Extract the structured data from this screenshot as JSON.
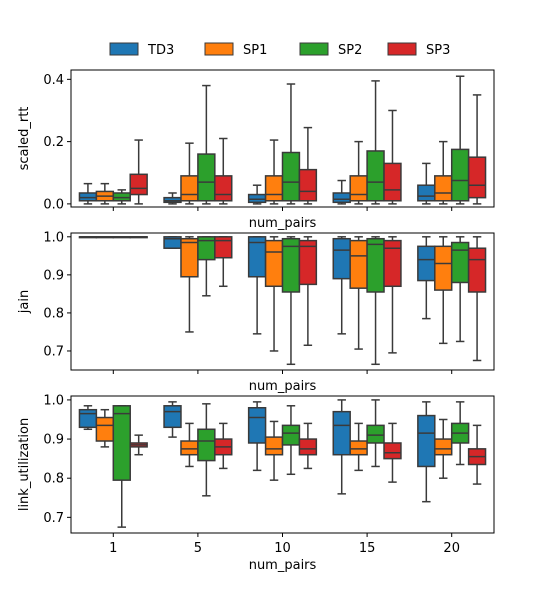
{
  "chart_data": {
    "type": "boxplot",
    "x_categories": [
      "1",
      "5",
      "10",
      "15",
      "20"
    ],
    "xlabel": "num_pairs",
    "legend": {
      "placement": "top-center",
      "entries": [
        {
          "name": "TD3",
          "color": "#1f77b4"
        },
        {
          "name": "SP1",
          "color": "#ff7f0e"
        },
        {
          "name": "SP2",
          "color": "#2ca02c"
        },
        {
          "name": "SP3",
          "color": "#d62728"
        }
      ]
    },
    "colors": {
      "TD3": "#1f77b4",
      "SP1": "#ff7f0e",
      "SP2": "#2ca02c",
      "SP3": "#d62728"
    },
    "panels": [
      {
        "ylabel": "scaled_rtt",
        "xlabel": "num_pairs",
        "ylim": [
          -0.01,
          0.43
        ],
        "yticks": [
          0.0,
          0.2,
          0.4
        ],
        "ytick_labels": [
          "0.0",
          "0.2",
          "0.4"
        ],
        "show_xticklabels": false,
        "boxes": {
          "TD3": [
            [
              0.0,
              0.01,
              0.02,
              0.035,
              0.065
            ],
            [
              0.0,
              0.005,
              0.01,
              0.02,
              0.035
            ],
            [
              0.0,
              0.005,
              0.015,
              0.03,
              0.06
            ],
            [
              0.0,
              0.005,
              0.015,
              0.035,
              0.075
            ],
            [
              0.0,
              0.01,
              0.025,
              0.06,
              0.13
            ]
          ],
          "SP1": [
            [
              0.0,
              0.01,
              0.025,
              0.04,
              0.065
            ],
            [
              0.0,
              0.01,
              0.03,
              0.09,
              0.195
            ],
            [
              0.0,
              0.01,
              0.03,
              0.09,
              0.205
            ],
            [
              0.0,
              0.01,
              0.03,
              0.09,
              0.2
            ],
            [
              0.0,
              0.01,
              0.035,
              0.09,
              0.2
            ]
          ],
          "SP2": [
            [
              0.0,
              0.01,
              0.02,
              0.035,
              0.045
            ],
            [
              0.0,
              0.01,
              0.07,
              0.16,
              0.38
            ],
            [
              0.0,
              0.01,
              0.07,
              0.165,
              0.385
            ],
            [
              0.0,
              0.01,
              0.07,
              0.17,
              0.395
            ],
            [
              0.0,
              0.01,
              0.075,
              0.175,
              0.41
            ]
          ],
          "SP3": [
            [
              0.0,
              0.03,
              0.05,
              0.095,
              0.205
            ],
            [
              0.0,
              0.01,
              0.03,
              0.09,
              0.21
            ],
            [
              0.0,
              0.01,
              0.04,
              0.11,
              0.245
            ],
            [
              0.0,
              0.01,
              0.045,
              0.13,
              0.3
            ],
            [
              0.0,
              0.02,
              0.06,
              0.15,
              0.35
            ]
          ]
        }
      },
      {
        "ylabel": "jain",
        "xlabel": "num_pairs",
        "ylim": [
          0.65,
          1.01
        ],
        "yticks": [
          0.7,
          0.8,
          0.9,
          1.0
        ],
        "ytick_labels": [
          "0.7",
          "0.8",
          "0.9",
          "1.0"
        ],
        "show_xticklabels": false,
        "boxes": {
          "TD3": [
            [
              1.0,
              1.0,
              1.0,
              1.0,
              1.0
            ],
            [
              0.97,
              0.97,
              0.995,
              1.0,
              1.0
            ],
            [
              0.745,
              0.895,
              0.985,
              1.0,
              1.0
            ],
            [
              0.745,
              0.89,
              0.965,
              0.995,
              1.0
            ],
            [
              0.785,
              0.885,
              0.94,
              0.975,
              1.0
            ]
          ],
          "SP1": [
            [
              1.0,
              1.0,
              1.0,
              1.0,
              1.0
            ],
            [
              0.75,
              0.895,
              0.985,
              0.995,
              1.0
            ],
            [
              0.7,
              0.87,
              0.96,
              0.99,
              1.0
            ],
            [
              0.705,
              0.865,
              0.95,
              0.99,
              1.0
            ],
            [
              0.72,
              0.86,
              0.93,
              0.975,
              1.0
            ]
          ],
          "SP2": [
            [
              1.0,
              1.0,
              1.0,
              1.0,
              1.0
            ],
            [
              0.845,
              0.94,
              0.99,
              1.0,
              1.0
            ],
            [
              0.665,
              0.855,
              0.975,
              0.995,
              1.0
            ],
            [
              0.665,
              0.855,
              0.98,
              0.995,
              1.0
            ],
            [
              0.725,
              0.88,
              0.965,
              0.985,
              1.0
            ]
          ],
          "SP3": [
            [
              1.0,
              1.0,
              1.0,
              1.0,
              1.0
            ],
            [
              0.87,
              0.945,
              0.99,
              1.0,
              1.0
            ],
            [
              0.715,
              0.875,
              0.975,
              0.99,
              1.0
            ],
            [
              0.695,
              0.87,
              0.97,
              0.99,
              1.0
            ],
            [
              0.675,
              0.855,
              0.94,
              0.97,
              1.0
            ]
          ]
        }
      },
      {
        "ylabel": "link_utilization",
        "xlabel": "num_pairs",
        "ylim": [
          0.66,
          1.01
        ],
        "yticks": [
          0.7,
          0.8,
          0.9,
          1.0
        ],
        "ytick_labels": [
          "0.7",
          "0.8",
          "0.9",
          "1.0"
        ],
        "show_xticklabels": true,
        "boxes": {
          "TD3": [
            [
              0.925,
              0.93,
              0.965,
              0.975,
              0.985
            ],
            [
              0.905,
              0.93,
              0.97,
              0.985,
              0.995
            ],
            [
              0.82,
              0.89,
              0.955,
              0.98,
              0.995
            ],
            [
              0.76,
              0.86,
              0.935,
              0.97,
              1.0
            ],
            [
              0.74,
              0.83,
              0.915,
              0.96,
              0.995
            ]
          ],
          "SP1": [
            [
              0.88,
              0.895,
              0.935,
              0.955,
              0.975
            ],
            [
              0.83,
              0.86,
              0.875,
              0.895,
              0.94
            ],
            [
              0.795,
              0.86,
              0.875,
              0.905,
              0.945
            ],
            [
              0.82,
              0.86,
              0.875,
              0.895,
              0.94
            ],
            [
              0.8,
              0.86,
              0.875,
              0.9,
              0.95
            ]
          ],
          "SP2": [
            [
              0.675,
              0.795,
              0.965,
              0.985,
              0.985
            ],
            [
              0.755,
              0.845,
              0.895,
              0.925,
              0.99
            ],
            [
              0.81,
              0.885,
              0.915,
              0.935,
              0.985
            ],
            [
              0.83,
              0.89,
              0.91,
              0.935,
              1.0
            ],
            [
              0.835,
              0.89,
              0.915,
              0.94,
              0.995
            ]
          ],
          "SP3": [
            [
              0.86,
              0.88,
              0.885,
              0.89,
              0.91
            ],
            [
              0.825,
              0.86,
              0.88,
              0.9,
              0.94
            ],
            [
              0.825,
              0.86,
              0.875,
              0.9,
              0.94
            ],
            [
              0.79,
              0.85,
              0.865,
              0.89,
              0.94
            ],
            [
              0.785,
              0.835,
              0.855,
              0.875,
              0.935
            ]
          ]
        }
      }
    ]
  }
}
